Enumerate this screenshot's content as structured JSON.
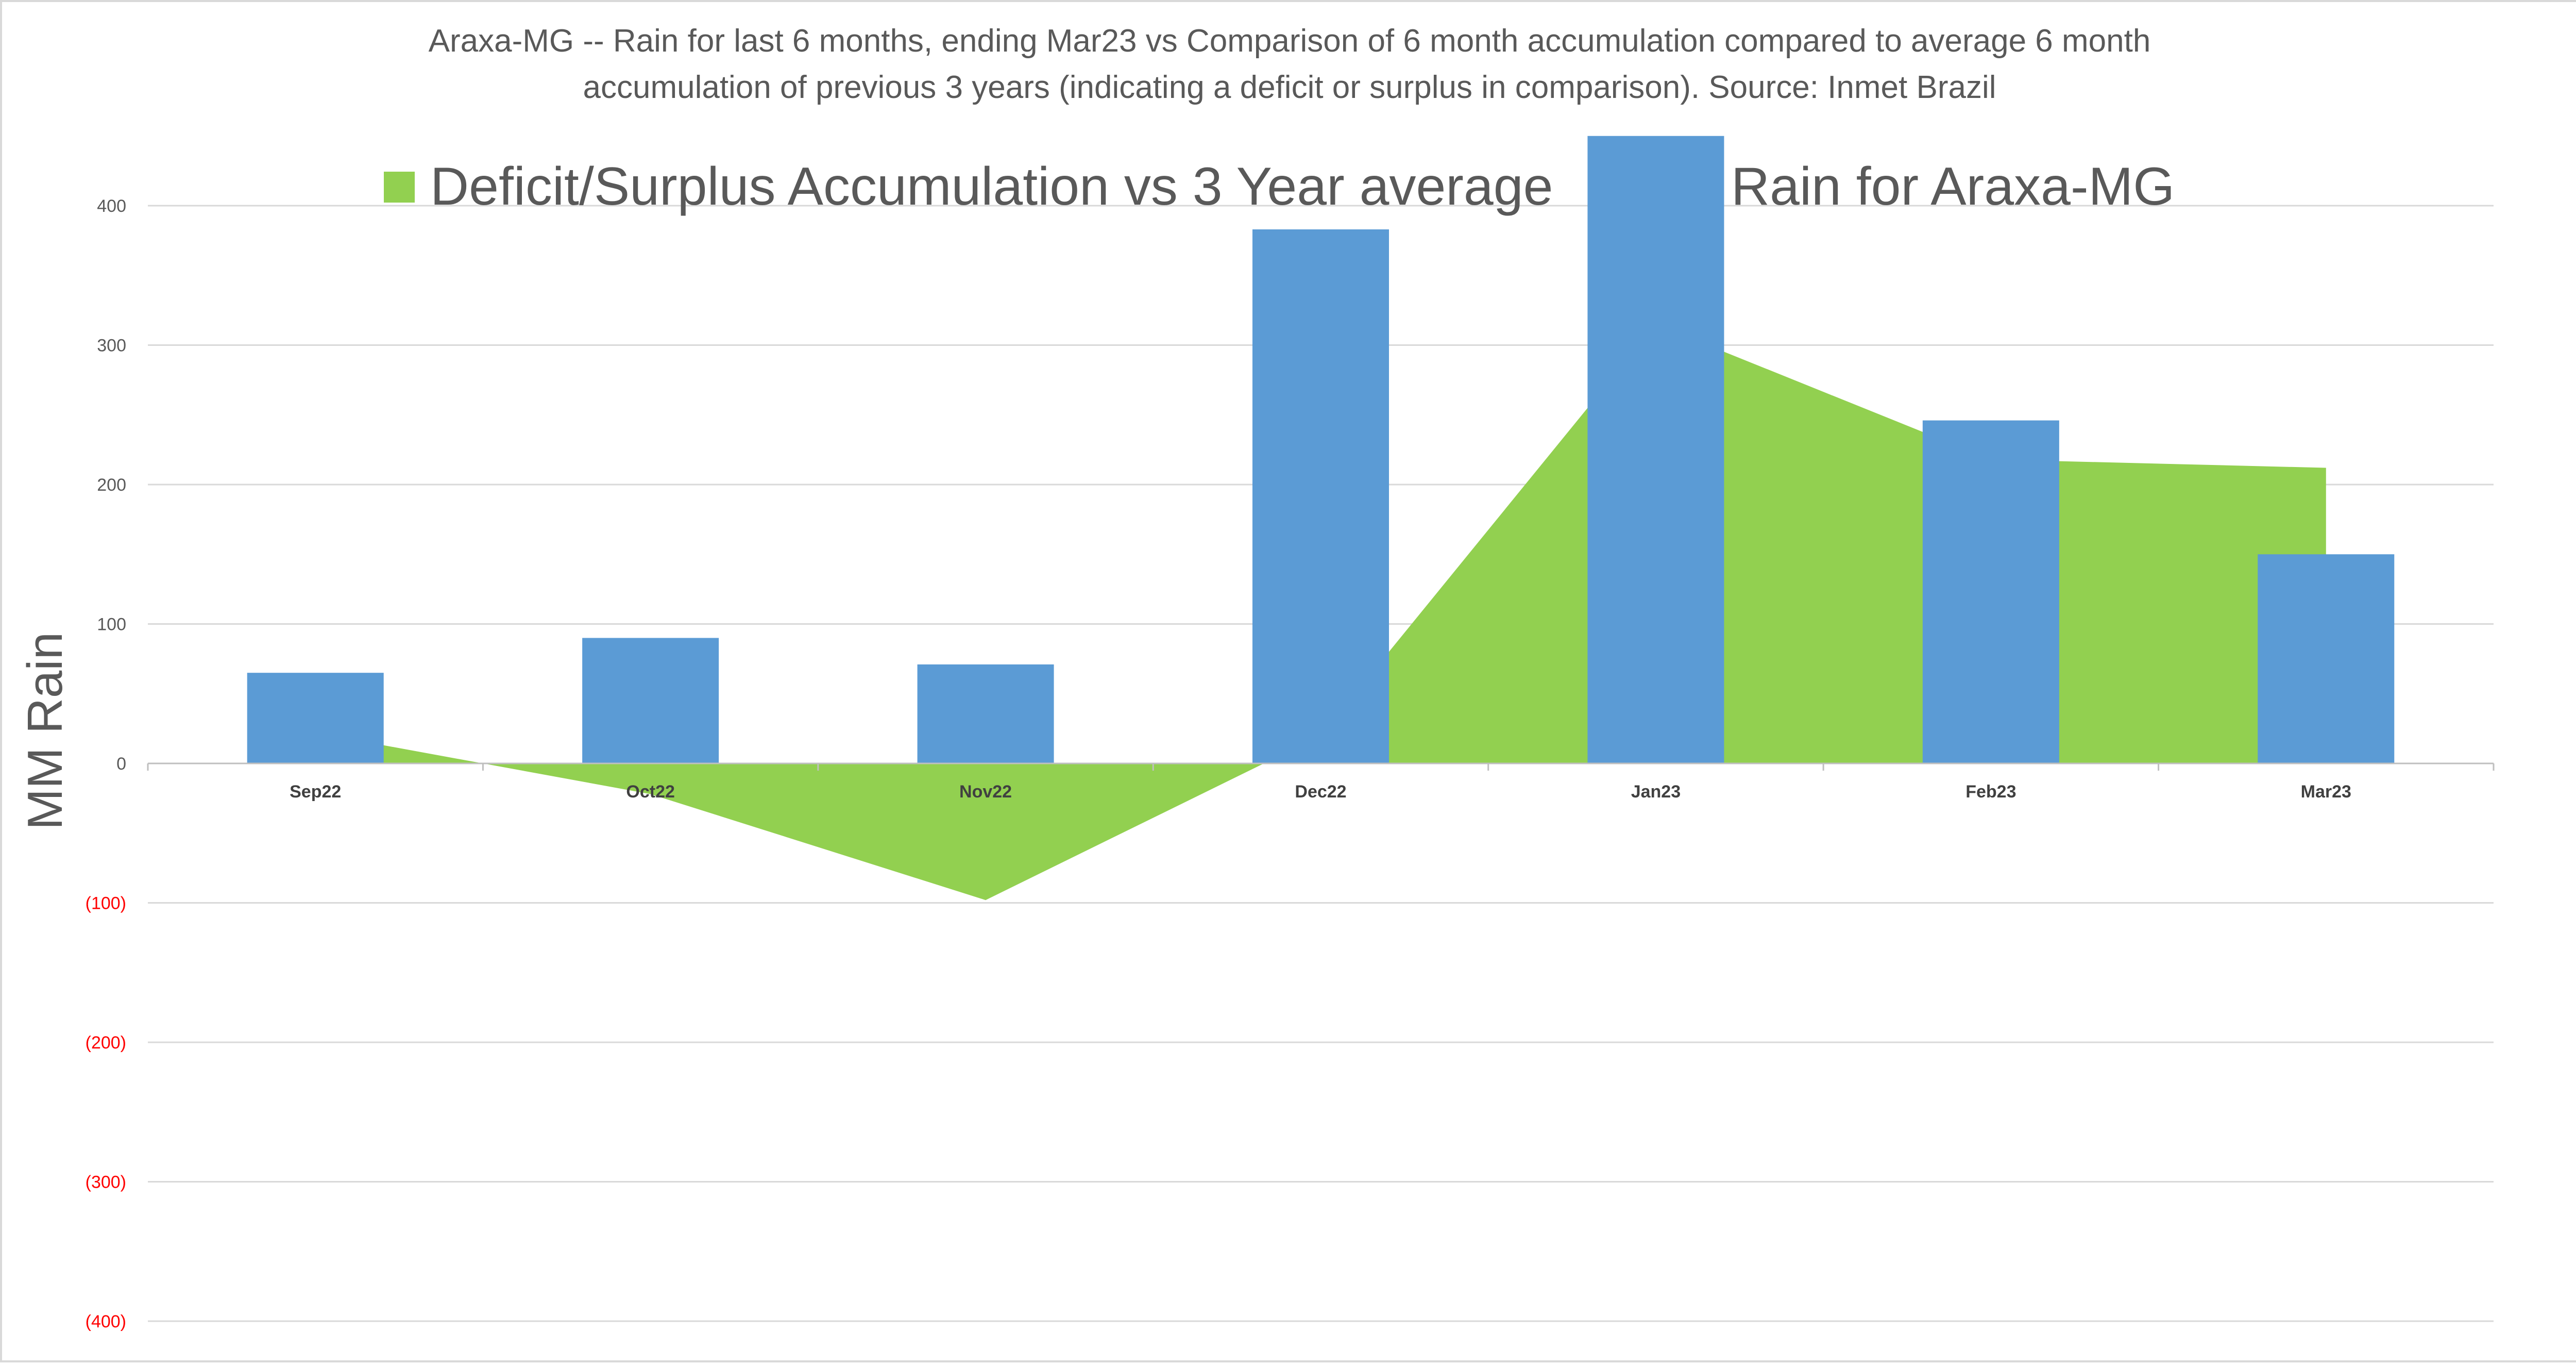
{
  "chart_data": {
    "type": "bar",
    "title_lines": [
      "Araxa-MG -- Rain for last 6 months, ending Mar23  vs Comparison of 6 month accumulation compared to average 6 month",
      "accumulation of previous 3 years  (indicating a deficit or surplus in comparison). Source: Inmet Brazil"
    ],
    "ylabel": "MM Rain",
    "xlabel": "",
    "ylim": [
      -400,
      450
    ],
    "yticks": [
      400,
      300,
      200,
      100,
      0,
      -100,
      -200,
      -300,
      -400
    ],
    "ytick_labels": [
      "400",
      "300",
      "200",
      "100",
      "0",
      "(100)",
      "(200)",
      "(300)",
      "(400)"
    ],
    "grid": true,
    "legend_position": "top",
    "categories": [
      "Sep22",
      "Oct22",
      "Nov22",
      "Dec22",
      "Jan23",
      "Feb23",
      "Mar23"
    ],
    "series": [
      {
        "name": "Deficit/Surplus Accumulation vs 3 Year average",
        "type": "area",
        "color": "#92D050",
        "values": [
          22,
          -22,
          -98,
          20,
          315,
          218,
          212
        ]
      },
      {
        "name": "Rain for Araxa-MG",
        "type": "bar",
        "color": "#5B9BD5",
        "values": [
          65,
          90,
          71,
          383,
          450,
          246,
          150
        ]
      }
    ],
    "colors": {
      "positive_tick": "#595959",
      "negative_tick": "#FF0000",
      "grid": "#D9D9D9",
      "axis": "#BFBFBF"
    }
  }
}
